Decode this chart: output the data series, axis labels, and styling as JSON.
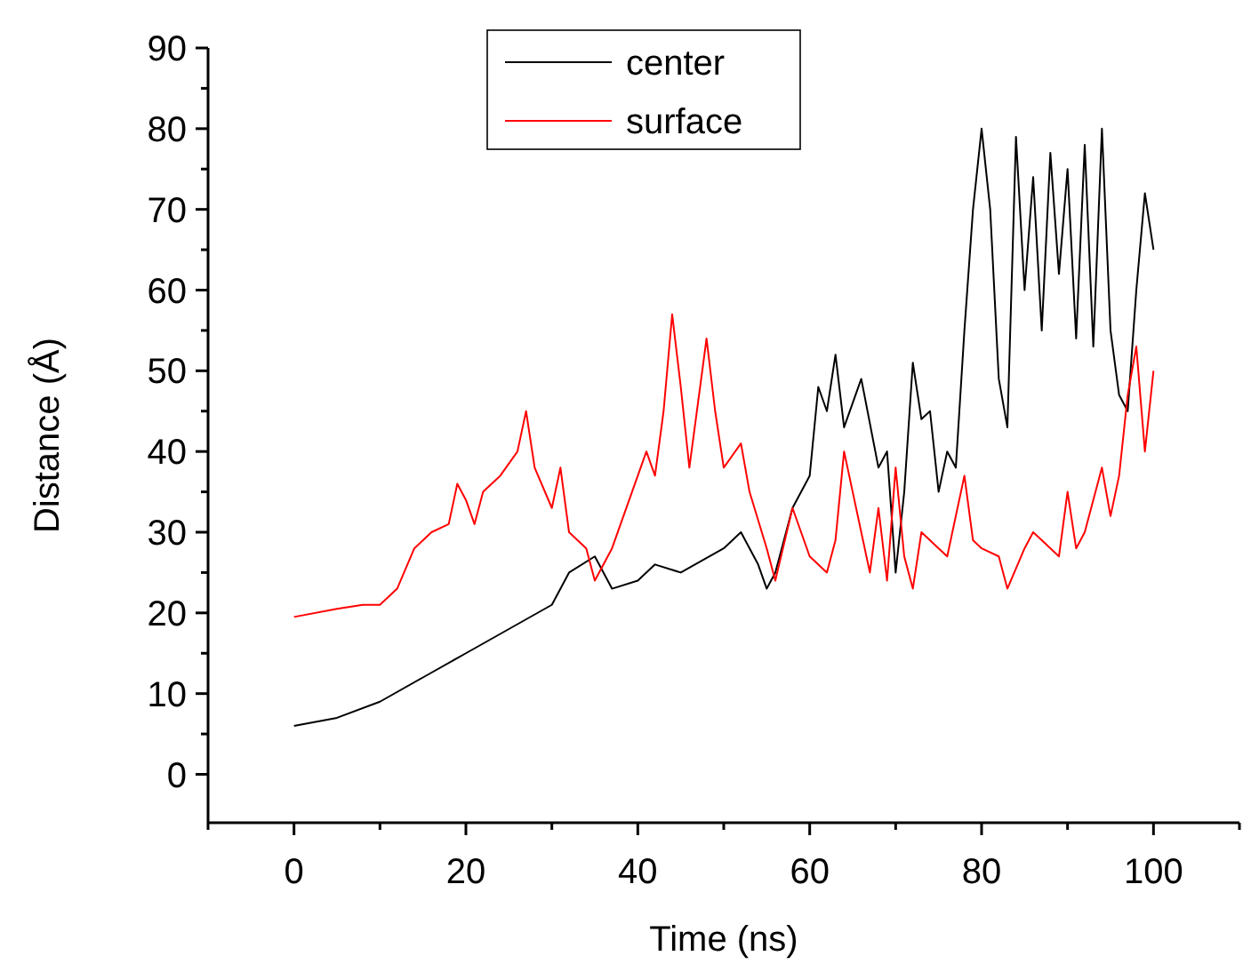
{
  "chart_data": {
    "type": "line",
    "xlabel": "Time (ns)",
    "ylabel": "Distance (Å)",
    "xlim": [
      -10,
      110
    ],
    "ylim": [
      -6,
      90
    ],
    "xticks": [
      {
        "value": -10,
        "label": null
      },
      0,
      {
        "value": 10,
        "label": null
      },
      20,
      {
        "value": 30,
        "label": null
      },
      40,
      {
        "value": 50,
        "label": null
      },
      60,
      {
        "value": 70,
        "label": null
      },
      80,
      {
        "value": 90,
        "label": null
      },
      100,
      {
        "value": 110,
        "label": null
      }
    ],
    "yticks": [
      0,
      {
        "value": 5,
        "label": null
      },
      10,
      {
        "value": 15,
        "label": null
      },
      20,
      {
        "value": 25,
        "label": null
      },
      30,
      {
        "value": 35,
        "label": null
      },
      40,
      {
        "value": 45,
        "label": null
      },
      50,
      {
        "value": 55,
        "label": null
      },
      60,
      {
        "value": 65,
        "label": null
      },
      70,
      {
        "value": 75,
        "label": null
      },
      80,
      {
        "value": 85,
        "label": null
      },
      90
    ],
    "grid": false,
    "legend": "top",
    "marker": "none",
    "line_style": "solid",
    "series": [
      {
        "name": "center",
        "color": "#000000",
        "x": [
          0,
          5,
          10,
          15,
          20,
          25,
          30,
          32,
          35,
          37,
          40,
          42,
          45,
          50,
          52,
          54,
          55,
          56,
          58,
          60,
          61,
          62,
          63,
          64,
          66,
          68,
          69,
          70,
          71,
          72,
          73,
          74,
          75,
          76,
          77,
          78,
          79,
          80,
          81,
          82,
          83,
          84,
          85,
          86,
          87,
          88,
          89,
          90,
          91,
          92,
          93,
          94,
          95,
          96,
          97,
          98,
          99,
          100
        ],
        "values": [
          6,
          7,
          9,
          12,
          15,
          18,
          21,
          25,
          27,
          23,
          24,
          26,
          25,
          28,
          30,
          26,
          23,
          25,
          33,
          37,
          48,
          45,
          52,
          43,
          49,
          38,
          40,
          25,
          35,
          51,
          44,
          45,
          35,
          40,
          38,
          55,
          70,
          80,
          70,
          49,
          43,
          79,
          60,
          74,
          55,
          77,
          62,
          75,
          54,
          78,
          53,
          80,
          55,
          47,
          45,
          60,
          72,
          65
        ]
      },
      {
        "name": "surface",
        "color": "#ff0000",
        "x": [
          0,
          5,
          8,
          10,
          12,
          14,
          16,
          18,
          19,
          20,
          21,
          22,
          24,
          26,
          27,
          28,
          30,
          31,
          32,
          34,
          35,
          37,
          39,
          41,
          42,
          43,
          44,
          45,
          46,
          48,
          49,
          50,
          52,
          53,
          55,
          56,
          58,
          59,
          60,
          62,
          63,
          64,
          65,
          66,
          67,
          68,
          69,
          70,
          71,
          72,
          73,
          75,
          76,
          78,
          79,
          80,
          82,
          83,
          85,
          86,
          87,
          89,
          90,
          91,
          92,
          94,
          95,
          96,
          97,
          98,
          99,
          100
        ],
        "values": [
          19.5,
          20.5,
          21,
          21,
          23,
          28,
          30,
          31,
          36,
          34,
          31,
          35,
          37,
          40,
          45,
          38,
          33,
          38,
          30,
          28,
          24,
          28,
          34,
          40,
          37,
          45,
          57,
          48,
          38,
          54,
          45,
          38,
          41,
          35,
          28,
          24,
          33,
          30,
          27,
          25,
          29,
          40,
          35,
          30,
          25,
          33,
          24,
          38,
          27,
          23,
          30,
          28,
          27,
          37,
          29,
          28,
          27,
          23,
          28,
          30,
          29,
          27,
          35,
          28,
          30,
          38,
          32,
          37,
          47,
          53,
          40,
          50
        ]
      }
    ]
  }
}
